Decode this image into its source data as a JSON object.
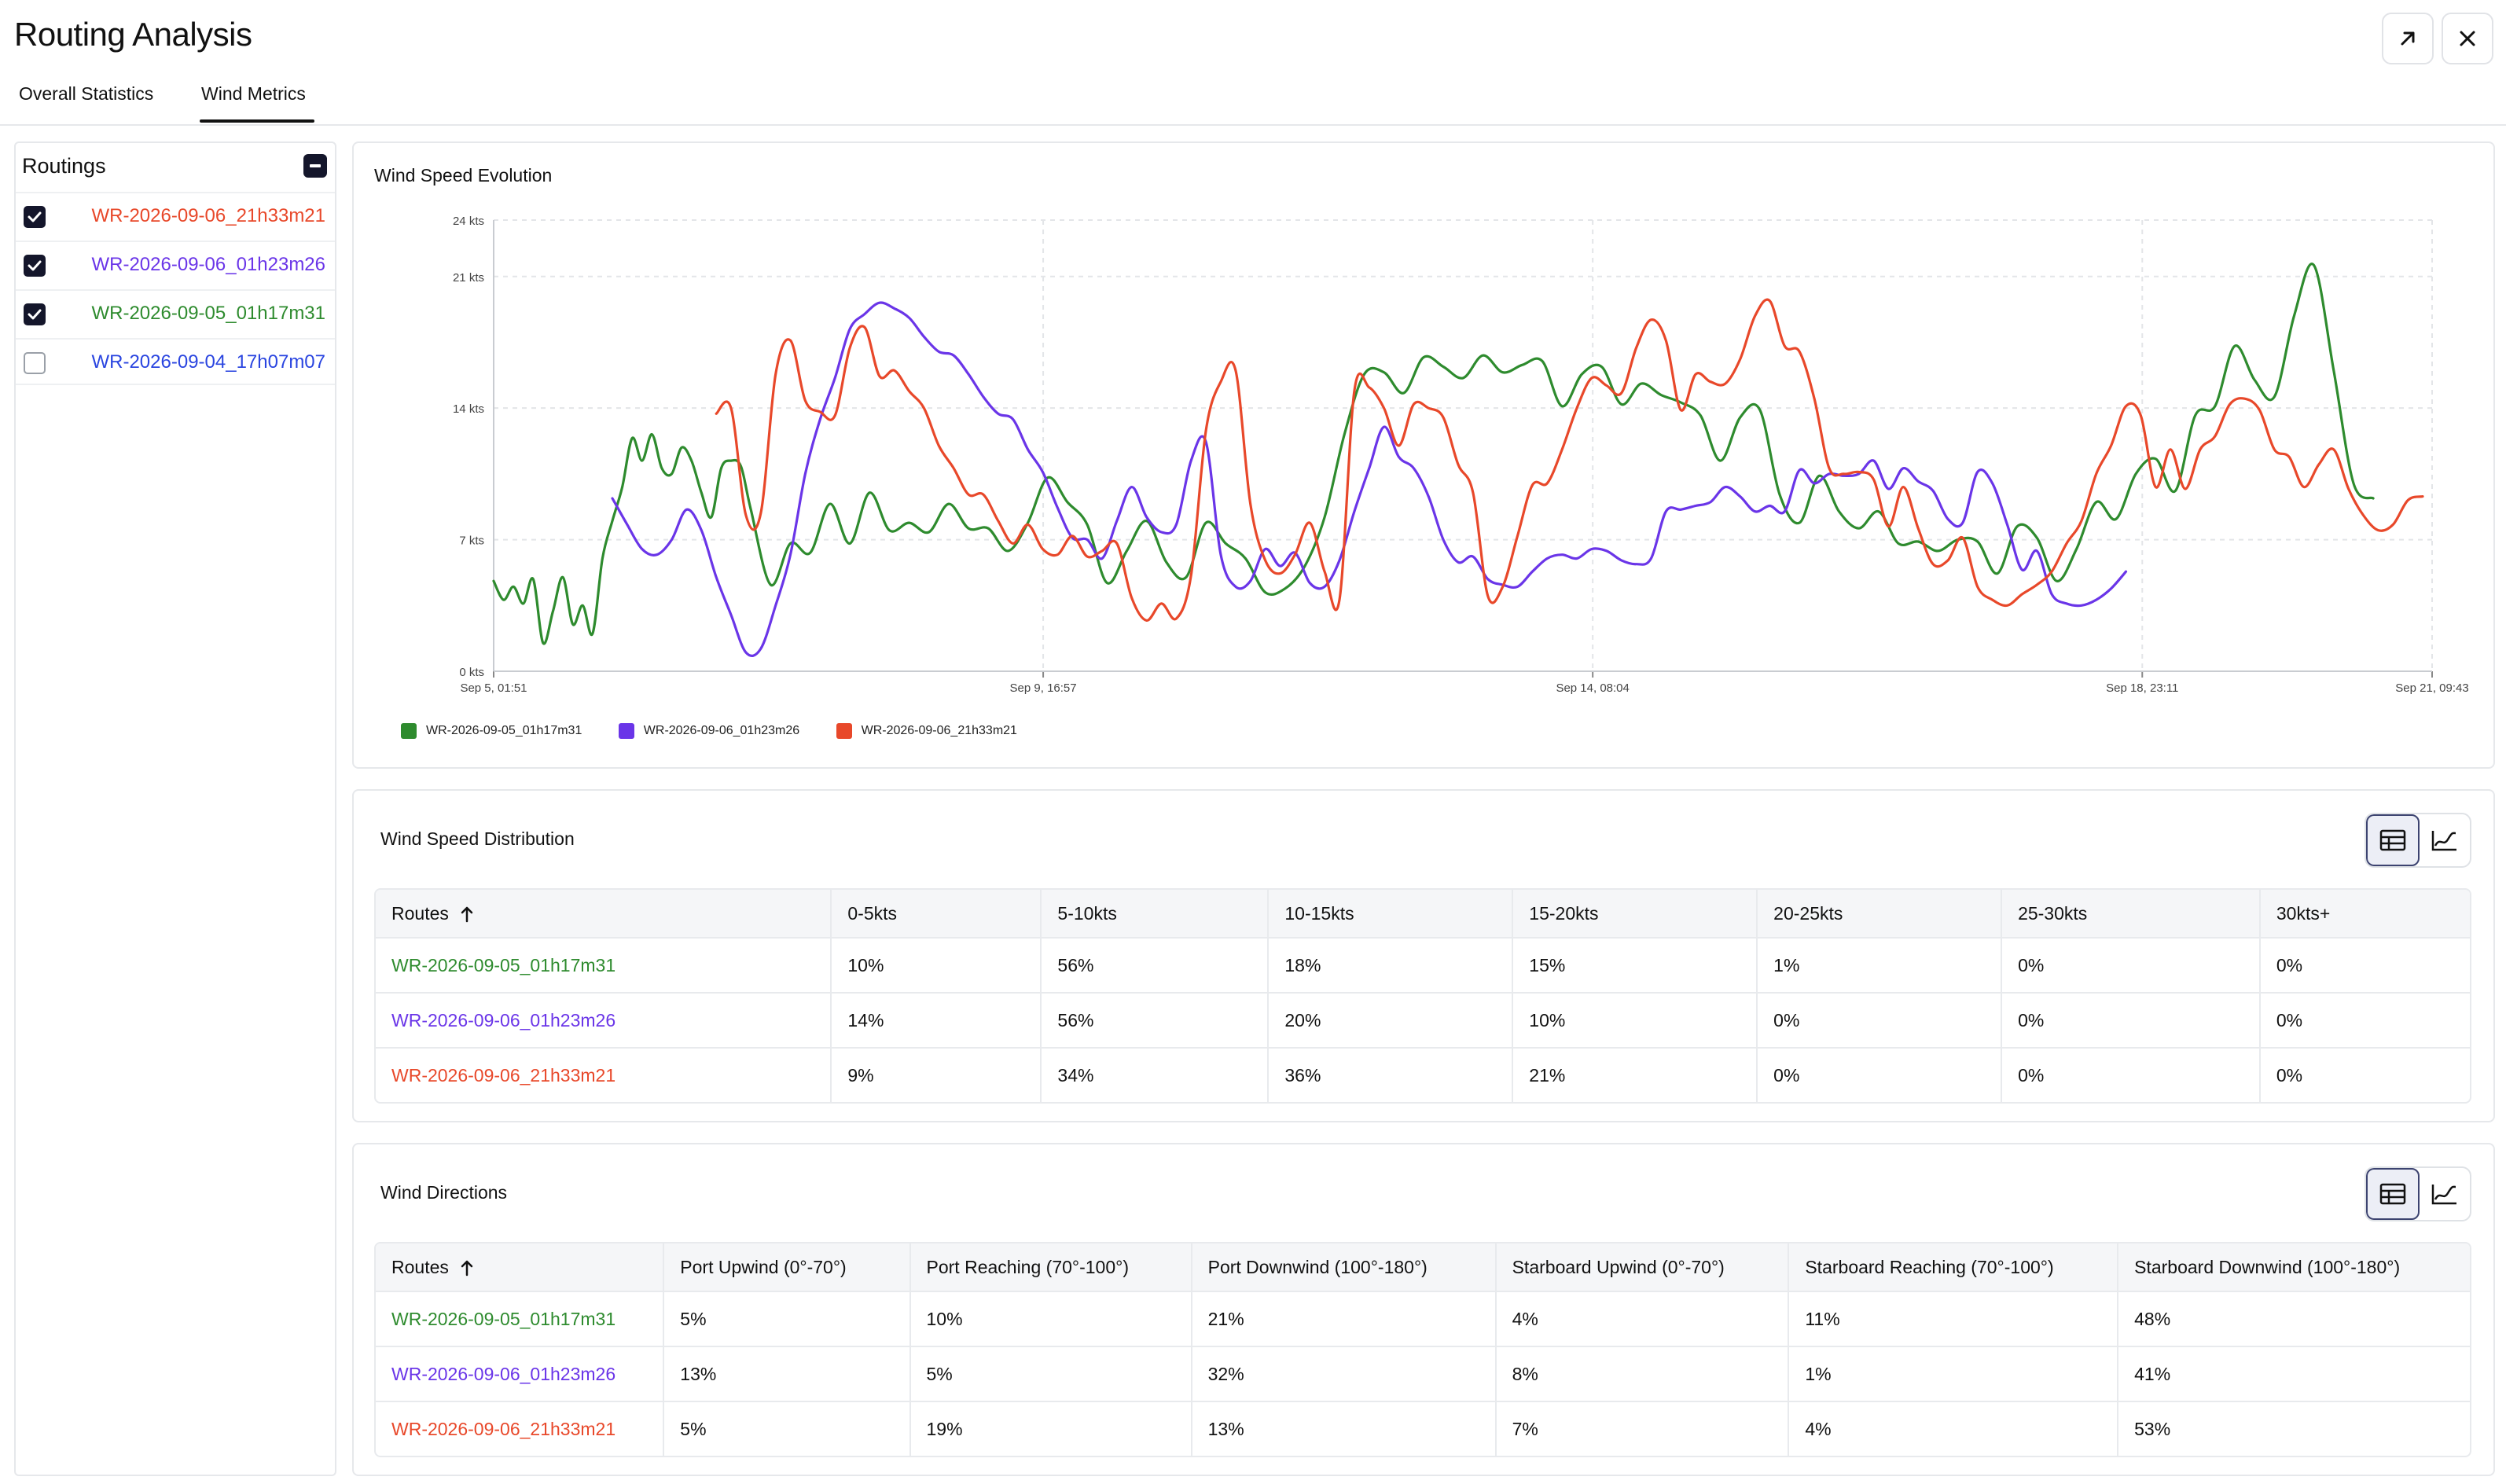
{
  "app": {
    "title": "Routing Analysis"
  },
  "header": {
    "expand_icon": "arrow-up-right-icon",
    "close_icon": "close-icon"
  },
  "tabs": [
    {
      "label": "Overall Statistics",
      "active": false
    },
    {
      "label": "Wind Metrics",
      "active": true
    }
  ],
  "sidebar": {
    "title": "Routings",
    "collapse_icon": "minus-icon",
    "items": [
      {
        "label": "WR-2026-09-06_21h33m21",
        "checked": true,
        "color": "#e8482a"
      },
      {
        "label": "WR-2026-09-06_01h23m26",
        "checked": true,
        "color": "#6a35e8"
      },
      {
        "label": "WR-2026-09-05_01h17m31",
        "checked": true,
        "color": "#2e8b2e"
      },
      {
        "label": "WR-2026-09-04_17h07m07",
        "checked": false,
        "color": "#2a45e0"
      }
    ]
  },
  "wind_speed_evolution": {
    "title": "Wind Speed Evolution",
    "chart_data": {
      "type": "line",
      "title": "Wind Speed Evolution",
      "xlabel": "",
      "ylabel": "",
      "ylim": [
        0,
        24
      ],
      "yticks": [
        "0 kts",
        "7 kts",
        "14 kts",
        "21 kts",
        "24 kts"
      ],
      "ytick_values": [
        0,
        7,
        14,
        21,
        24
      ],
      "xlim": [
        "Sep 5, 01:51",
        "Sep 21, 09:43"
      ],
      "xtick_labels": [
        "Sep 5, 01:51",
        "Sep 9, 16:57",
        "Sep 14, 08:04",
        "Sep 18, 23:11",
        "Sep 21, 09:43"
      ],
      "xtick_hours": [
        0,
        111.1,
        222.2,
        333.3,
        391.9
      ],
      "x_unit": "hours",
      "grid": true,
      "legend_position": "bottom-left",
      "series": [
        {
          "name": "WR-2026-09-05_01h17m31",
          "color": "#2e8b2e",
          "x": [
            0,
            2,
            4,
            6,
            8,
            10,
            12,
            14,
            16,
            18,
            20,
            22,
            24,
            26,
            28,
            30,
            32,
            34,
            36,
            38,
            40,
            42,
            44,
            46,
            48,
            50,
            52,
            56,
            60,
            64,
            68,
            72,
            76,
            80,
            84,
            88,
            92,
            96,
            100,
            104,
            108,
            112,
            116,
            120,
            124,
            128,
            132,
            136,
            140,
            144,
            148,
            152,
            156,
            160,
            164,
            168,
            172,
            176,
            180,
            184,
            188,
            192,
            196,
            200,
            204,
            208,
            212,
            216,
            220,
            224,
            228,
            232,
            236,
            240,
            244,
            248,
            252,
            256,
            260,
            264,
            268,
            272,
            276,
            280,
            284,
            288,
            292,
            296,
            300,
            304,
            308,
            312,
            316,
            320,
            324,
            328,
            332,
            336,
            340,
            344,
            348,
            352,
            356,
            360,
            364,
            368,
            372,
            376,
            380
          ],
          "y": [
            4.8,
            3.8,
            4.5,
            3.6,
            4.9,
            1.5,
            3.2,
            5.0,
            2.5,
            3.5,
            2.0,
            6.0,
            8.0,
            9.8,
            12.4,
            11.2,
            12.6,
            10.8,
            10.5,
            11.9,
            11.2,
            9.5,
            8.2,
            10.8,
            11.2,
            10.9,
            8.6,
            4.6,
            6.8,
            6.3,
            8.9,
            6.8,
            9.5,
            7.5,
            7.9,
            7.4,
            8.9,
            7.6,
            7.6,
            6.4,
            7.9,
            10.3,
            9.0,
            7.8,
            4.7,
            6.4,
            8.0,
            5.8,
            5.0,
            7.9,
            6.8,
            6.0,
            4.2,
            4.4,
            5.6,
            8.2,
            12.6,
            15.8,
            15.9,
            14.8,
            16.7,
            16.2,
            15.6,
            16.8,
            15.9,
            16.3,
            16.5,
            14.1,
            15.8,
            16.2,
            14.2,
            15.3,
            14.7,
            14.3,
            13.6,
            11.2,
            13.5,
            13.9,
            9.4,
            7.9,
            10.4,
            8.5,
            7.6,
            8.5,
            6.8,
            6.9,
            6.4,
            7.0,
            6.9,
            5.2,
            7.7,
            7.1,
            4.8,
            6.5,
            9.0,
            8.1,
            10.5,
            11.3,
            9.6,
            13.6,
            14.1,
            17.3,
            15.5,
            14.6,
            18.9,
            21.6,
            16.0,
            10.0,
            9.2
          ]
        },
        {
          "name": "WR-2026-09-06_01h23m26",
          "color": "#6a35e8",
          "x": [
            24,
            27,
            30,
            33,
            36,
            39,
            42,
            45,
            48,
            51,
            54,
            57,
            60,
            63,
            66,
            69,
            72,
            75,
            78,
            81,
            84,
            87,
            90,
            93,
            96,
            99,
            102,
            105,
            108,
            111,
            114,
            117,
            120,
            123,
            126,
            129,
            132,
            135,
            138,
            141,
            144,
            147,
            150,
            153,
            156,
            159,
            162,
            165,
            168,
            171,
            174,
            177,
            180,
            183,
            186,
            189,
            192,
            195,
            198,
            201,
            204,
            207,
            210,
            213,
            216,
            219,
            222,
            225,
            228,
            231,
            234,
            237,
            240,
            243,
            246,
            249,
            252,
            255,
            258,
            261,
            264,
            267,
            270,
            273,
            276,
            279,
            282,
            285,
            288,
            291,
            294,
            297,
            300,
            303,
            306,
            309,
            312,
            315,
            318,
            321,
            324,
            327,
            330
          ],
          "y": [
            9.2,
            7.8,
            6.5,
            6.2,
            7.0,
            8.6,
            7.5,
            5.0,
            3.0,
            1.0,
            1.2,
            3.5,
            6.2,
            10.5,
            13.4,
            15.6,
            18.2,
            19.0,
            19.6,
            19.3,
            18.8,
            17.8,
            17.0,
            16.8,
            15.8,
            14.6,
            13.7,
            13.4,
            11.8,
            10.6,
            8.7,
            7.1,
            7.0,
            6.0,
            8.0,
            9.8,
            8.2,
            7.4,
            7.8,
            11.2,
            12.2,
            6.2,
            4.5,
            4.8,
            6.5,
            5.6,
            6.3,
            4.7,
            4.5,
            5.9,
            8.5,
            10.8,
            13.0,
            11.4,
            10.8,
            9.3,
            7.0,
            5.8,
            6.1,
            4.9,
            4.6,
            4.5,
            5.3,
            6.0,
            6.2,
            6.0,
            6.5,
            6.4,
            5.9,
            5.7,
            6.0,
            8.5,
            8.6,
            8.8,
            9.0,
            9.8,
            9.3,
            8.5,
            8.8,
            8.5,
            10.7,
            10.0,
            10.5,
            10.4,
            10.5,
            11.2,
            9.7,
            10.8,
            10.1,
            9.6,
            8.1,
            7.9,
            10.6,
            10.0,
            7.8,
            5.4,
            6.4,
            4.1,
            3.6,
            3.5,
            3.8,
            4.4,
            5.3
          ]
        },
        {
          "name": "WR-2026-09-06_21h33m21",
          "color": "#e8482a",
          "x": [
            45,
            48,
            51,
            54,
            57,
            60,
            63,
            66,
            69,
            72,
            75,
            78,
            81,
            84,
            87,
            90,
            93,
            96,
            99,
            102,
            105,
            108,
            111,
            114,
            117,
            120,
            123,
            126,
            129,
            132,
            135,
            138,
            141,
            144,
            147,
            150,
            153,
            156,
            159,
            162,
            165,
            168,
            171,
            174,
            177,
            180,
            183,
            186,
            189,
            192,
            195,
            198,
            201,
            204,
            207,
            210,
            213,
            216,
            219,
            222,
            225,
            228,
            231,
            234,
            237,
            240,
            243,
            246,
            249,
            252,
            255,
            258,
            261,
            264,
            267,
            270,
            273,
            276,
            279,
            282,
            285,
            288,
            291,
            294,
            297,
            300,
            303,
            306,
            309,
            312,
            315,
            318,
            321,
            324,
            327,
            330,
            333,
            336,
            339,
            342,
            345,
            348,
            351,
            354,
            357,
            360,
            363,
            366,
            369,
            372,
            375,
            378,
            381,
            384,
            387,
            390
          ],
          "y": [
            13.7,
            14.0,
            8.3,
            8.4,
            15.8,
            17.6,
            14.4,
            13.8,
            13.6,
            17.2,
            18.3,
            15.7,
            16.0,
            14.9,
            14.0,
            12.0,
            10.8,
            9.4,
            9.4,
            8.0,
            6.8,
            7.8,
            6.5,
            6.2,
            7.2,
            6.1,
            6.4,
            6.8,
            3.9,
            2.7,
            3.6,
            2.8,
            5.1,
            12.8,
            15.4,
            16.0,
            8.9,
            5.9,
            5.2,
            6.2,
            7.9,
            5.3,
            3.8,
            14.9,
            15.1,
            14.0,
            12.0,
            14.2,
            14.0,
            13.5,
            11.0,
            9.5,
            4.0,
            4.5,
            7.2,
            9.9,
            10.0,
            11.8,
            14.0,
            15.6,
            15.2,
            14.8,
            17.2,
            18.7,
            17.6,
            13.9,
            15.8,
            15.4,
            15.3,
            16.6,
            18.9,
            19.7,
            17.3,
            17.0,
            14.5,
            10.8,
            10.5,
            10.6,
            10.2,
            7.7,
            9.8,
            7.6,
            5.7,
            5.9,
            7.1,
            4.5,
            3.8,
            3.5,
            4.1,
            4.6,
            5.3,
            6.8,
            8.0,
            10.5,
            12.0,
            14.1,
            13.6,
            9.8,
            11.8,
            9.7,
            11.8,
            12.5,
            14.2,
            14.5,
            13.9,
            11.8,
            11.4,
            9.8,
            11.0,
            11.8,
            9.7,
            8.3,
            7.5,
            7.8,
            9.1,
            9.3
          ]
        }
      ]
    }
  },
  "wind_speed_distribution": {
    "title": "Wind Speed Distribution",
    "table_view_icon": "table-icon",
    "chart_view_icon": "line-chart-icon",
    "headers": [
      "Routes",
      "0-5kts",
      "5-10kts",
      "10-15kts",
      "15-20kts",
      "20-25kts",
      "25-30kts",
      "30kts+"
    ],
    "sort_icon": "arrow-up-icon",
    "rows": [
      {
        "route": "WR-2026-09-05_01h17m31",
        "color": "#2e8b2e",
        "cells": [
          "10%",
          "56%",
          "18%",
          "15%",
          "1%",
          "0%",
          "0%"
        ]
      },
      {
        "route": "WR-2026-09-06_01h23m26",
        "color": "#6a35e8",
        "cells": [
          "14%",
          "56%",
          "20%",
          "10%",
          "0%",
          "0%",
          "0%"
        ]
      },
      {
        "route": "WR-2026-09-06_21h33m21",
        "color": "#e8482a",
        "cells": [
          "9%",
          "34%",
          "36%",
          "21%",
          "0%",
          "0%",
          "0%"
        ]
      }
    ]
  },
  "wind_directions": {
    "title": "Wind Directions",
    "table_view_icon": "table-icon",
    "chart_view_icon": "line-chart-icon",
    "headers": [
      "Routes",
      "Port Upwind (0°-70°)",
      "Port Reaching (70°-100°)",
      "Port Downwind (100°-180°)",
      "Starboard Upwind (0°-70°)",
      "Starboard Reaching (70°-100°)",
      "Starboard Downwind (100°-180°)"
    ],
    "sort_icon": "arrow-up-icon",
    "rows": [
      {
        "route": "WR-2026-09-05_01h17m31",
        "color": "#2e8b2e",
        "cells": [
          "5%",
          "10%",
          "21%",
          "4%",
          "11%",
          "48%"
        ]
      },
      {
        "route": "WR-2026-09-06_01h23m26",
        "color": "#6a35e8",
        "cells": [
          "13%",
          "5%",
          "32%",
          "8%",
          "1%",
          "41%"
        ]
      },
      {
        "route": "WR-2026-09-06_21h33m21",
        "color": "#e8482a",
        "cells": [
          "5%",
          "19%",
          "13%",
          "7%",
          "4%",
          "53%"
        ]
      }
    ]
  }
}
